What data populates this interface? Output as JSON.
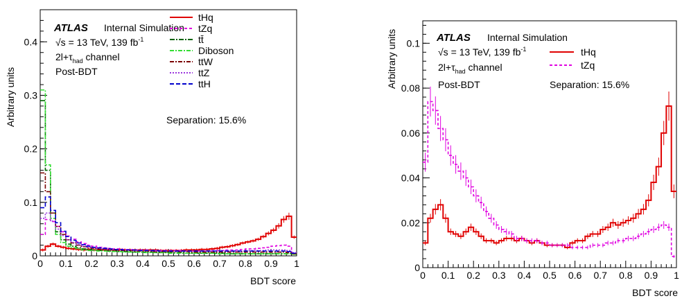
{
  "chart_data": [
    {
      "type": "line",
      "xlabel": "BDT score",
      "ylabel": "Arbitrary units",
      "xlim": [
        0,
        1
      ],
      "ylim": [
        0,
        0.46
      ],
      "x_ticks": [
        "0",
        "0.1",
        "0.2",
        "0.3",
        "0.4",
        "0.5",
        "0.6",
        "0.7",
        "0.8",
        "0.9",
        "1"
      ],
      "y_ticks": [
        "0",
        "0.1",
        "0.2",
        "0.3",
        "0.4"
      ],
      "y_tick_values": [
        0,
        0.1,
        0.2,
        0.3,
        0.4
      ],
      "annotations": {
        "atlas": "ATLAS",
        "internal": "Internal  Simulation",
        "energy_pre": "√s = 13 TeV, 139 fb",
        "energy_sup": "-1",
        "channel_pre": "2l+τ",
        "channel_sub": "had",
        "channel_post": " channel",
        "stage": "Post-BDT",
        "separation": "Separation: 15.6%"
      },
      "legend_position": "top-right",
      "x": [
        0.01,
        0.03,
        0.05,
        0.07,
        0.09,
        0.11,
        0.13,
        0.15,
        0.17,
        0.19,
        0.21,
        0.23,
        0.25,
        0.27,
        0.29,
        0.31,
        0.33,
        0.35,
        0.37,
        0.39,
        0.41,
        0.43,
        0.45,
        0.47,
        0.49,
        0.51,
        0.53,
        0.55,
        0.57,
        0.59,
        0.61,
        0.63,
        0.65,
        0.67,
        0.69,
        0.71,
        0.73,
        0.75,
        0.77,
        0.79,
        0.81,
        0.83,
        0.85,
        0.87,
        0.89,
        0.91,
        0.93,
        0.95,
        0.97,
        0.99
      ],
      "series": [
        {
          "name": "tHq",
          "color": "#e00000",
          "dash": "",
          "values": [
            0.011,
            0.018,
            0.022,
            0.018,
            0.016,
            0.014,
            0.013,
            0.012,
            0.011,
            0.012,
            0.011,
            0.011,
            0.011,
            0.012,
            0.011,
            0.012,
            0.011,
            0.011,
            0.011,
            0.011,
            0.011,
            0.011,
            0.011,
            0.01,
            0.01,
            0.01,
            0.01,
            0.01,
            0.011,
            0.011,
            0.011,
            0.012,
            0.012,
            0.013,
            0.014,
            0.016,
            0.017,
            0.019,
            0.021,
            0.024,
            0.026,
            0.028,
            0.031,
            0.036,
            0.042,
            0.048,
            0.056,
            0.068,
            0.074,
            0.035
          ]
        },
        {
          "name": "tZq",
          "color": "#e000e0",
          "dash": "4,3",
          "values": [
            0.04,
            0.068,
            0.064,
            0.055,
            0.045,
            0.037,
            0.031,
            0.026,
            0.023,
            0.02,
            0.018,
            0.016,
            0.015,
            0.014,
            0.013,
            0.013,
            0.012,
            0.012,
            0.011,
            0.011,
            0.011,
            0.01,
            0.01,
            0.01,
            0.01,
            0.01,
            0.01,
            0.01,
            0.009,
            0.009,
            0.009,
            0.009,
            0.009,
            0.01,
            0.01,
            0.01,
            0.011,
            0.011,
            0.011,
            0.012,
            0.013,
            0.013,
            0.014,
            0.015,
            0.016,
            0.018,
            0.019,
            0.02,
            0.018,
            0.006
          ]
        },
        {
          "name": "tt̄",
          "color": "#006400",
          "dash": "7,2,2,2",
          "values": [
            0.29,
            0.16,
            0.08,
            0.045,
            0.03,
            0.022,
            0.018,
            0.015,
            0.013,
            0.012,
            0.011,
            0.01,
            0.01,
            0.009,
            0.009,
            0.008,
            0.008,
            0.008,
            0.007,
            0.007,
            0.007,
            0.007,
            0.006,
            0.006,
            0.006,
            0.006,
            0.006,
            0.006,
            0.005,
            0.005,
            0.005,
            0.005,
            0.005,
            0.005,
            0.005,
            0.005,
            0.004,
            0.004,
            0.004,
            0.004,
            0.004,
            0.004,
            0.004,
            0.004,
            0.004,
            0.004,
            0.004,
            0.004,
            0.004,
            0.003
          ]
        },
        {
          "name": "Diboson",
          "color": "#33dd33",
          "dash": "6,2,2,2",
          "values": [
            0.31,
            0.17,
            0.07,
            0.04,
            0.025,
            0.018,
            0.015,
            0.013,
            0.011,
            0.01,
            0.01,
            0.009,
            0.009,
            0.008,
            0.008,
            0.008,
            0.007,
            0.007,
            0.007,
            0.007,
            0.006,
            0.006,
            0.006,
            0.006,
            0.006,
            0.005,
            0.005,
            0.005,
            0.005,
            0.005,
            0.005,
            0.005,
            0.005,
            0.005,
            0.004,
            0.004,
            0.004,
            0.004,
            0.004,
            0.004,
            0.004,
            0.004,
            0.004,
            0.004,
            0.004,
            0.004,
            0.004,
            0.004,
            0.004,
            0.003
          ]
        },
        {
          "name": "ttW",
          "color": "#7a0000",
          "dash": "6,2,2,2",
          "values": [
            0.155,
            0.12,
            0.08,
            0.055,
            0.04,
            0.03,
            0.024,
            0.02,
            0.017,
            0.015,
            0.014,
            0.013,
            0.012,
            0.011,
            0.011,
            0.01,
            0.01,
            0.01,
            0.009,
            0.009,
            0.009,
            0.009,
            0.008,
            0.008,
            0.008,
            0.008,
            0.008,
            0.008,
            0.008,
            0.007,
            0.007,
            0.007,
            0.007,
            0.007,
            0.007,
            0.007,
            0.007,
            0.007,
            0.007,
            0.007,
            0.007,
            0.007,
            0.007,
            0.007,
            0.007,
            0.007,
            0.007,
            0.007,
            0.006,
            0.004
          ]
        },
        {
          "name": "ttZ",
          "color": "#9933dd",
          "dash": "2,2",
          "values": [
            0.07,
            0.08,
            0.065,
            0.05,
            0.038,
            0.03,
            0.025,
            0.021,
            0.018,
            0.016,
            0.015,
            0.014,
            0.013,
            0.012,
            0.012,
            0.011,
            0.011,
            0.011,
            0.01,
            0.01,
            0.01,
            0.01,
            0.009,
            0.009,
            0.009,
            0.009,
            0.009,
            0.009,
            0.009,
            0.009,
            0.009,
            0.009,
            0.009,
            0.009,
            0.009,
            0.009,
            0.009,
            0.009,
            0.009,
            0.009,
            0.01,
            0.01,
            0.01,
            0.01,
            0.011,
            0.011,
            0.011,
            0.011,
            0.01,
            0.006
          ]
        },
        {
          "name": "ttH",
          "color": "#0000cc",
          "dash": "6,3",
          "values": [
            0.09,
            0.11,
            0.085,
            0.062,
            0.046,
            0.036,
            0.029,
            0.024,
            0.021,
            0.018,
            0.016,
            0.015,
            0.014,
            0.013,
            0.012,
            0.012,
            0.011,
            0.011,
            0.011,
            0.01,
            0.01,
            0.01,
            0.01,
            0.009,
            0.009,
            0.009,
            0.009,
            0.009,
            0.009,
            0.009,
            0.009,
            0.009,
            0.009,
            0.009,
            0.009,
            0.009,
            0.009,
            0.009,
            0.009,
            0.009,
            0.009,
            0.009,
            0.009,
            0.009,
            0.009,
            0.009,
            0.009,
            0.009,
            0.008,
            0.005
          ]
        }
      ]
    },
    {
      "type": "line",
      "xlabel": "BDT score",
      "ylabel": "Arbitrary units",
      "xlim": [
        0,
        1
      ],
      "ylim": [
        0,
        0.11
      ],
      "x_ticks": [
        "0",
        "0.1",
        "0.2",
        "0.3",
        "0.4",
        "0.5",
        "0.6",
        "0.7",
        "0.8",
        "0.9",
        "1"
      ],
      "y_ticks": [
        "0",
        "0.02",
        "0.04",
        "0.06",
        "0.08",
        "0.1"
      ],
      "y_tick_values": [
        0,
        0.02,
        0.04,
        0.06,
        0.08,
        0.1
      ],
      "annotations": {
        "atlas": "ATLAS",
        "internal": "Internal  Simulation",
        "energy_pre": "√s = 13 TeV, 139 fb",
        "energy_sup": "-1",
        "channel_pre": "2l+τ",
        "channel_sub": "had",
        "channel_post": " channel",
        "stage": "Post-BDT",
        "separation": "Separation: 15.6%"
      },
      "legend_position": "top-right",
      "x": [
        0.01,
        0.03,
        0.05,
        0.07,
        0.09,
        0.11,
        0.13,
        0.15,
        0.17,
        0.19,
        0.21,
        0.23,
        0.25,
        0.27,
        0.29,
        0.31,
        0.33,
        0.35,
        0.37,
        0.39,
        0.41,
        0.43,
        0.45,
        0.47,
        0.49,
        0.51,
        0.53,
        0.55,
        0.57,
        0.59,
        0.61,
        0.63,
        0.65,
        0.67,
        0.69,
        0.71,
        0.73,
        0.75,
        0.77,
        0.79,
        0.81,
        0.83,
        0.85,
        0.87,
        0.89,
        0.91,
        0.93,
        0.95,
        0.97,
        0.99
      ],
      "series": [
        {
          "name": "tHq",
          "color": "#e00000",
          "dash": "",
          "values": [
            0.011,
            0.022,
            0.026,
            0.028,
            0.022,
            0.016,
            0.015,
            0.014,
            0.016,
            0.018,
            0.016,
            0.014,
            0.012,
            0.012,
            0.011,
            0.012,
            0.013,
            0.013,
            0.012,
            0.013,
            0.012,
            0.011,
            0.012,
            0.011,
            0.01,
            0.01,
            0.01,
            0.01,
            0.009,
            0.011,
            0.012,
            0.012,
            0.014,
            0.015,
            0.015,
            0.017,
            0.018,
            0.02,
            0.019,
            0.02,
            0.021,
            0.022,
            0.024,
            0.026,
            0.03,
            0.038,
            0.045,
            0.06,
            0.072,
            0.034
          ]
        },
        {
          "name": "tZq",
          "color": "#e000e0",
          "dash": "4,3",
          "values": [
            0.047,
            0.074,
            0.07,
            0.062,
            0.057,
            0.05,
            0.046,
            0.043,
            0.04,
            0.036,
            0.032,
            0.029,
            0.025,
            0.022,
            0.019,
            0.017,
            0.016,
            0.015,
            0.013,
            0.013,
            0.012,
            0.012,
            0.012,
            0.011,
            0.011,
            0.01,
            0.01,
            0.01,
            0.01,
            0.009,
            0.009,
            0.009,
            0.009,
            0.01,
            0.01,
            0.01,
            0.011,
            0.011,
            0.012,
            0.012,
            0.013,
            0.013,
            0.014,
            0.015,
            0.016,
            0.017,
            0.018,
            0.019,
            0.018,
            0.005
          ]
        }
      ]
    }
  ]
}
